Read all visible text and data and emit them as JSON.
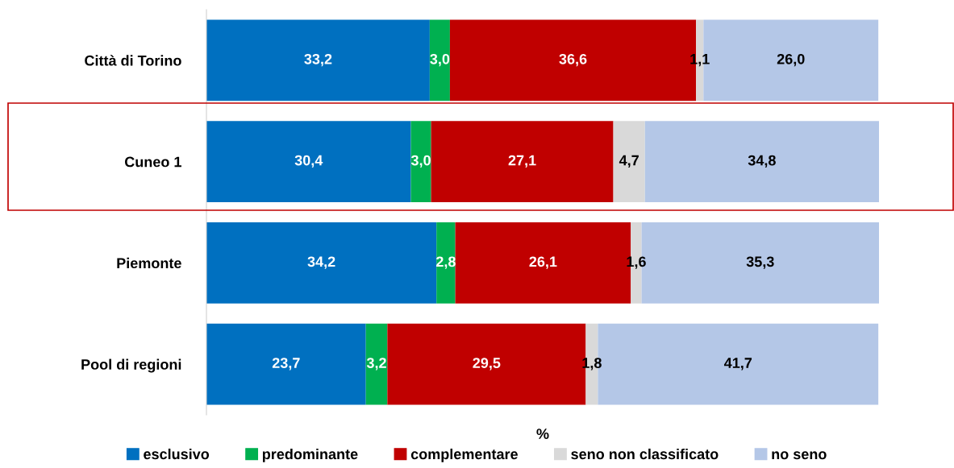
{
  "chart_data": {
    "type": "bar",
    "orientation": "horizontal",
    "stacked": true,
    "xlabel": "%",
    "grid": false,
    "legend": "bottom",
    "categories": [
      "Città di Torino",
      "Cuneo 1",
      "Piemonte",
      "Pool di regioni"
    ],
    "series": [
      {
        "name": "esclusivo",
        "color": "#0070c0",
        "values": [
          33.2,
          30.4,
          34.2,
          23.7
        ],
        "value_labels": [
          "33,2",
          "30,4",
          "34,2",
          "23,7"
        ]
      },
      {
        "name": "predominante",
        "color": "#00b050",
        "values": [
          3.0,
          3.0,
          2.8,
          3.2
        ],
        "value_labels": [
          "3,0",
          "3,0",
          "2,8",
          "3,2"
        ]
      },
      {
        "name": "complementare",
        "color": "#c00000",
        "values": [
          36.6,
          27.1,
          26.1,
          29.5
        ],
        "value_labels": [
          "36,6",
          "27,1",
          "26,1",
          "29,5"
        ]
      },
      {
        "name": "seno non classificato",
        "color": "#d9d9d9",
        "values": [
          1.1,
          4.7,
          1.6,
          1.8
        ],
        "value_labels": [
          "1,1",
          "4,7",
          "1,6",
          "1,8"
        ]
      },
      {
        "name": "no seno",
        "color": "#b4c7e7",
        "values": [
          26.0,
          34.8,
          35.3,
          41.7
        ],
        "value_labels": [
          "26,0",
          "34,8",
          "35,3",
          "41,7"
        ]
      }
    ]
  }
}
